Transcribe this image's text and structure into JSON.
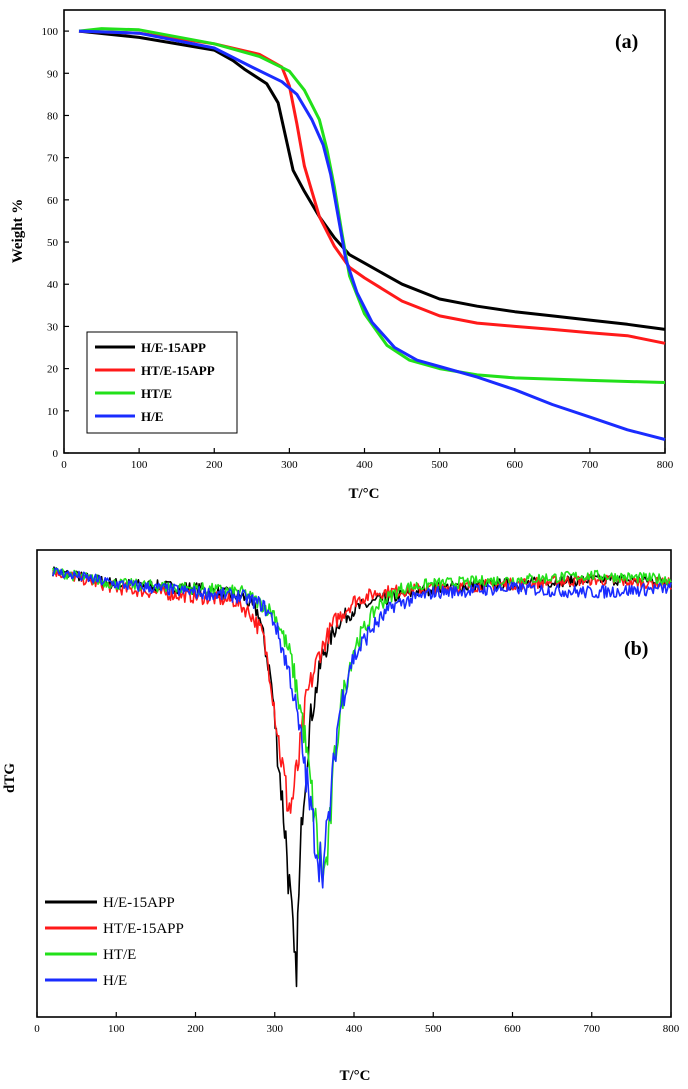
{
  "colors": {
    "black": "#000000",
    "red": "#ff1a1a",
    "green": "#22e01a",
    "blue": "#1a2cff"
  },
  "chart_data": [
    {
      "type": "line",
      "panel_label": "(a)",
      "xlabel": "T/°C",
      "ylabel": "Weight %",
      "xlim": [
        0,
        800
      ],
      "ylim": [
        0,
        105
      ],
      "xticks": [
        0,
        100,
        200,
        300,
        400,
        500,
        600,
        700,
        800
      ],
      "yticks": [
        0,
        10,
        20,
        30,
        40,
        50,
        60,
        70,
        80,
        90,
        100
      ],
      "legend_position": "bottom-left",
      "series": [
        {
          "name": "H/E-15APP",
          "color": "#000000",
          "points": [
            [
              20,
              100
            ],
            [
              100,
              98.5
            ],
            [
              200,
              95.5
            ],
            [
              225,
              93
            ],
            [
              240,
              91
            ],
            [
              270,
              87.5
            ],
            [
              285,
              83
            ],
            [
              295,
              75
            ],
            [
              305,
              67
            ],
            [
              320,
              62
            ],
            [
              340,
              56
            ],
            [
              360,
              51
            ],
            [
              380,
              47
            ],
            [
              400,
              45
            ],
            [
              450,
              40
            ],
            [
              500,
              36.5
            ],
            [
              550,
              34.8
            ],
            [
              600,
              33.5
            ],
            [
              650,
              32.5
            ],
            [
              700,
              31.5
            ],
            [
              750,
              30.5
            ],
            [
              800,
              29.3
            ]
          ]
        },
        {
          "name": "HT/E-15APP",
          "color": "#ff1a1a",
          "points": [
            [
              20,
              100
            ],
            [
              100,
              99.5
            ],
            [
              200,
              97
            ],
            [
              260,
              94.5
            ],
            [
              290,
              91.5
            ],
            [
              300,
              87
            ],
            [
              310,
              78
            ],
            [
              320,
              68
            ],
            [
              330,
              62
            ],
            [
              340,
              56
            ],
            [
              360,
              49
            ],
            [
              380,
              44
            ],
            [
              400,
              41.5
            ],
            [
              450,
              36
            ],
            [
              500,
              32.5
            ],
            [
              550,
              30.8
            ],
            [
              600,
              30
            ],
            [
              650,
              29.3
            ],
            [
              700,
              28.5
            ],
            [
              750,
              27.8
            ],
            [
              800,
              26
            ]
          ]
        },
        {
          "name": "HT/E",
          "color": "#22e01a",
          "points": [
            [
              20,
              100
            ],
            [
              50,
              100.6
            ],
            [
              100,
              100.3
            ],
            [
              200,
              97
            ],
            [
              260,
              94
            ],
            [
              300,
              90.5
            ],
            [
              320,
              86
            ],
            [
              340,
              79
            ],
            [
              350,
              72
            ],
            [
              360,
              63
            ],
            [
              370,
              52
            ],
            [
              380,
              42
            ],
            [
              400,
              33
            ],
            [
              430,
              25.5
            ],
            [
              460,
              22
            ],
            [
              500,
              20
            ],
            [
              550,
              18.5
            ],
            [
              600,
              17.8
            ],
            [
              700,
              17.2
            ],
            [
              800,
              16.7
            ]
          ]
        },
        {
          "name": "H/E",
          "color": "#1a2cff",
          "points": [
            [
              20,
              100
            ],
            [
              100,
              99.5
            ],
            [
              200,
              96
            ],
            [
              250,
              91.5
            ],
            [
              290,
              88
            ],
            [
              310,
              85
            ],
            [
              330,
              79
            ],
            [
              345,
              73
            ],
            [
              355,
              66
            ],
            [
              365,
              56
            ],
            [
              375,
              46
            ],
            [
              390,
              38
            ],
            [
              410,
              31
            ],
            [
              440,
              25
            ],
            [
              470,
              22
            ],
            [
              500,
              20.5
            ],
            [
              550,
              18
            ],
            [
              600,
              15
            ],
            [
              650,
              11.5
            ],
            [
              700,
              8.5
            ],
            [
              750,
              5.5
            ],
            [
              800,
              3.2
            ]
          ]
        }
      ]
    },
    {
      "type": "line",
      "panel_label": "(b)",
      "xlabel": "T/°C",
      "ylabel": "dTG",
      "xlim": [
        0,
        800
      ],
      "ylim": [
        -1.05,
        0.05
      ],
      "xticks": [
        0,
        100,
        200,
        300,
        400,
        500,
        600,
        700,
        800
      ],
      "y_tick_labels": false,
      "legend_position": "bottom-left",
      "series": [
        {
          "name": "H/E-15APP",
          "color": "#000000",
          "points": [
            [
              20,
              0
            ],
            [
              100,
              -0.03
            ],
            [
              200,
              -0.04
            ],
            [
              260,
              -0.06
            ],
            [
              280,
              -0.1
            ],
            [
              295,
              -0.25
            ],
            [
              305,
              -0.45
            ],
            [
              315,
              -0.65
            ],
            [
              322,
              -0.85
            ],
            [
              326,
              -0.97
            ],
            [
              330,
              -0.8
            ],
            [
              335,
              -0.55
            ],
            [
              345,
              -0.35
            ],
            [
              360,
              -0.2
            ],
            [
              380,
              -0.12
            ],
            [
              400,
              -0.09
            ],
            [
              430,
              -0.07
            ],
            [
              500,
              -0.04
            ],
            [
              600,
              -0.03
            ],
            [
              700,
              -0.02
            ],
            [
              800,
              -0.02
            ]
          ]
        },
        {
          "name": "HT/E-15APP",
          "color": "#ff1a1a",
          "points": [
            [
              20,
              0
            ],
            [
              100,
              -0.04
            ],
            [
              200,
              -0.06
            ],
            [
              250,
              -0.07
            ],
            [
              270,
              -0.1
            ],
            [
              285,
              -0.15
            ],
            [
              295,
              -0.25
            ],
            [
              305,
              -0.4
            ],
            [
              315,
              -0.53
            ],
            [
              320,
              -0.56
            ],
            [
              330,
              -0.45
            ],
            [
              340,
              -0.3
            ],
            [
              355,
              -0.2
            ],
            [
              375,
              -0.12
            ],
            [
              400,
              -0.07
            ],
            [
              430,
              -0.05
            ],
            [
              500,
              -0.04
            ],
            [
              600,
              -0.03
            ],
            [
              700,
              -0.02
            ],
            [
              800,
              -0.03
            ]
          ]
        },
        {
          "name": "HT/E",
          "color": "#22e01a",
          "points": [
            [
              20,
              0
            ],
            [
              100,
              -0.03
            ],
            [
              200,
              -0.04
            ],
            [
              260,
              -0.05
            ],
            [
              285,
              -0.08
            ],
            [
              300,
              -0.1
            ],
            [
              320,
              -0.2
            ],
            [
              335,
              -0.35
            ],
            [
              345,
              -0.5
            ],
            [
              355,
              -0.65
            ],
            [
              362,
              -0.72
            ],
            [
              368,
              -0.65
            ],
            [
              375,
              -0.45
            ],
            [
              385,
              -0.3
            ],
            [
              400,
              -0.18
            ],
            [
              430,
              -0.08
            ],
            [
              460,
              -0.04
            ],
            [
              500,
              -0.03
            ],
            [
              600,
              -0.02
            ],
            [
              700,
              -0.01
            ],
            [
              800,
              -0.02
            ]
          ]
        },
        {
          "name": "H/E",
          "color": "#1a2cff",
          "points": [
            [
              20,
              0
            ],
            [
              100,
              -0.03
            ],
            [
              200,
              -0.05
            ],
            [
              260,
              -0.06
            ],
            [
              285,
              -0.08
            ],
            [
              300,
              -0.12
            ],
            [
              320,
              -0.25
            ],
            [
              335,
              -0.42
            ],
            [
              345,
              -0.56
            ],
            [
              355,
              -0.67
            ],
            [
              362,
              -0.69
            ],
            [
              370,
              -0.55
            ],
            [
              380,
              -0.35
            ],
            [
              395,
              -0.22
            ],
            [
              420,
              -0.14
            ],
            [
              450,
              -0.08
            ],
            [
              500,
              -0.05
            ],
            [
              600,
              -0.04
            ],
            [
              700,
              -0.05
            ],
            [
              800,
              -0.04
            ]
          ]
        }
      ]
    }
  ]
}
